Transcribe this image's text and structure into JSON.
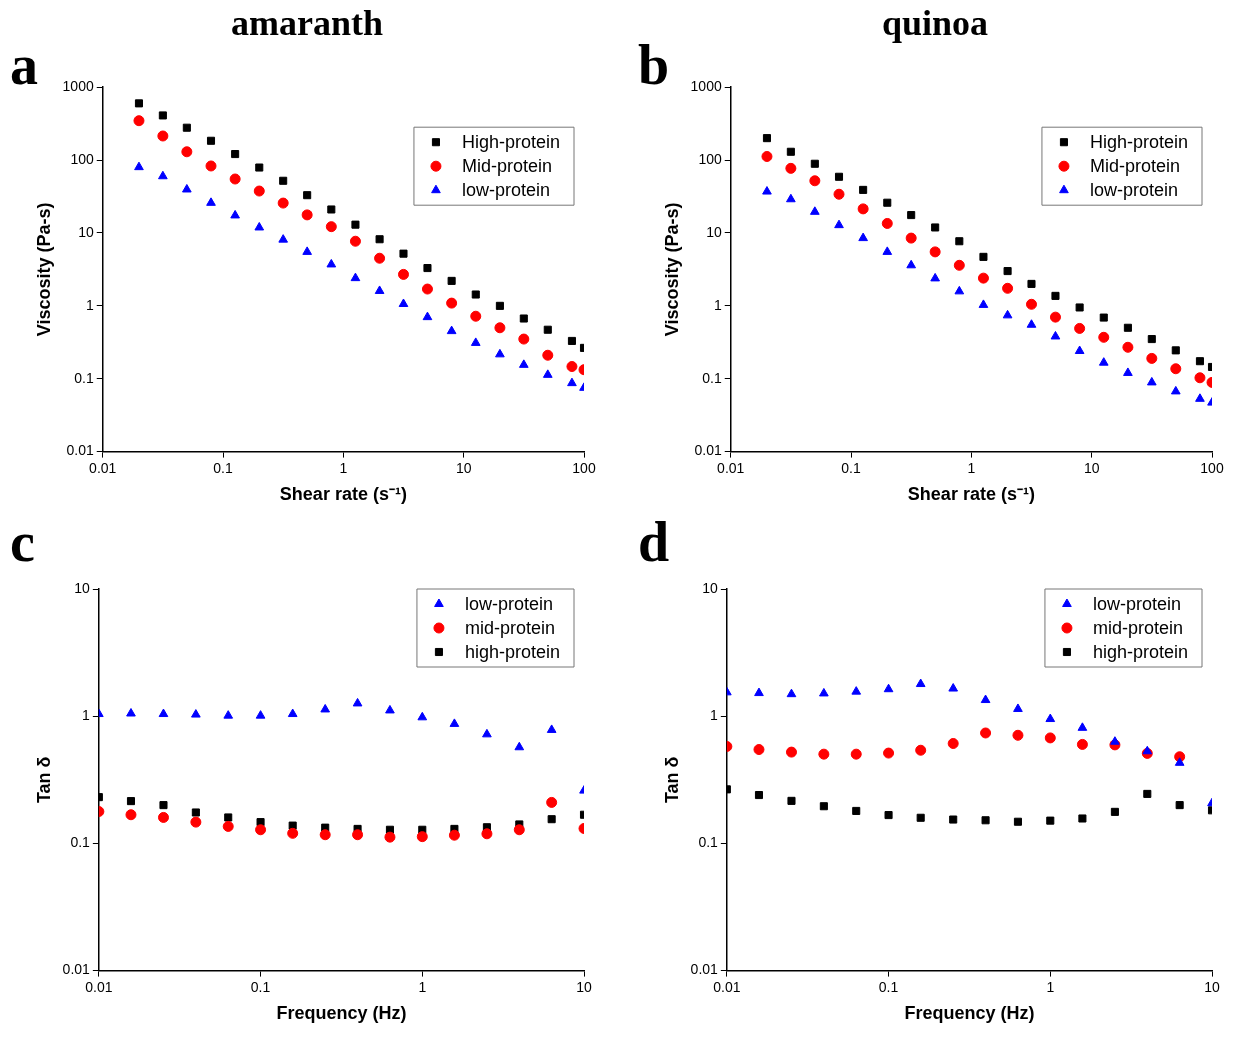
{
  "chart_data": [
    {
      "type": "scatter",
      "title": "amaranth",
      "annotations": [
        "a"
      ],
      "xlabel": "Shear rate (s⁻¹)",
      "ylabel": "Viscosity (Pa-s)",
      "log": "xy",
      "legend": "top right",
      "x": [
        0.02,
        0.0316,
        0.05,
        0.0794,
        0.126,
        0.2,
        0.316,
        0.5,
        0.794,
        1.26,
        2,
        3.16,
        5,
        7.94,
        12.6,
        20,
        31.6,
        50,
        79.4,
        100
      ],
      "xlim": [
        0.01,
        100
      ],
      "xticks": [
        0.01,
        0.1,
        1,
        10,
        100
      ],
      "ylim": [
        0.01,
        1000
      ],
      "yticks": [
        0.01,
        0.1,
        1,
        10,
        100,
        1000
      ],
      "series": [
        {
          "name": "High-protein",
          "color": "#000000",
          "marker": "square",
          "values": [
            600,
            410,
            278,
            184,
            121,
            79,
            52,
            33,
            21,
            13,
            8.2,
            5.2,
            3.3,
            2.2,
            1.43,
            1.0,
            0.67,
            0.47,
            0.33,
            0.265
          ]
        },
        {
          "name": "Mid-protein",
          "color": "#ff0000",
          "marker": "circle",
          "values": [
            347,
            214,
            130,
            83,
            55,
            37.6,
            25.7,
            17.7,
            12.2,
            7.7,
            4.5,
            2.7,
            1.7,
            1.09,
            0.72,
            0.5,
            0.35,
            0.21,
            0.147,
            0.133
          ]
        },
        {
          "name": "low-protein",
          "color": "#0000ff",
          "marker": "triangle",
          "values": [
            80,
            60,
            39.5,
            25.9,
            17.4,
            11.9,
            8.1,
            5.5,
            3.7,
            2.4,
            1.6,
            1.06,
            0.7,
            0.45,
            0.31,
            0.216,
            0.155,
            0.113,
            0.087,
            0.075
          ]
        }
      ]
    },
    {
      "type": "scatter",
      "title": "quinoa",
      "annotations": [
        "b"
      ],
      "xlabel": "Shear rate (s⁻¹)",
      "ylabel": "Viscosity (Pa-s)",
      "log": "xy",
      "legend": "top right",
      "x": [
        0.02,
        0.0316,
        0.05,
        0.0794,
        0.126,
        0.2,
        0.316,
        0.5,
        0.794,
        1.26,
        2,
        3.16,
        5,
        7.94,
        12.6,
        20,
        31.6,
        50,
        79.4,
        100
      ],
      "xlim": [
        0.01,
        100
      ],
      "xticks": [
        0.01,
        0.1,
        1,
        10,
        100
      ],
      "ylim": [
        0.01,
        1000
      ],
      "yticks": [
        0.01,
        0.1,
        1,
        10,
        100,
        1000
      ],
      "series": [
        {
          "name": "High-protein",
          "color": "#000000",
          "marker": "square",
          "values": [
            200,
            130,
            89,
            59,
            39,
            26,
            17.6,
            11.9,
            7.7,
            4.7,
            3.0,
            2.0,
            1.37,
            0.95,
            0.69,
            0.5,
            0.35,
            0.245,
            0.174,
            0.145
          ]
        },
        {
          "name": "Mid-protein",
          "color": "#ff0000",
          "marker": "circle",
          "values": [
            112,
            77,
            52,
            34,
            21.4,
            13.5,
            8.5,
            5.5,
            3.6,
            2.4,
            1.74,
            1.05,
            0.7,
            0.49,
            0.37,
            0.27,
            0.19,
            0.137,
            0.103,
            0.089
          ]
        },
        {
          "name": "low-protein",
          "color": "#0000ff",
          "marker": "triangle",
          "values": [
            37,
            29,
            19.5,
            12.8,
            8.5,
            5.5,
            3.6,
            2.38,
            1.58,
            1.03,
            0.74,
            0.55,
            0.38,
            0.24,
            0.166,
            0.12,
            0.089,
            0.067,
            0.053,
            0.047
          ]
        }
      ]
    },
    {
      "type": "scatter",
      "annotations": [
        "c"
      ],
      "xlabel": "Frequency (Hz)",
      "ylabel": "Tan δ",
      "log": "xy",
      "legend": "top right",
      "x": [
        0.01,
        0.0158,
        0.0251,
        0.0398,
        0.0631,
        0.1,
        0.158,
        0.251,
        0.398,
        0.631,
        1,
        1.58,
        2.51,
        3.98,
        6.31,
        10
      ],
      "xlim": [
        0.01,
        10
      ],
      "xticks": [
        0.01,
        0.1,
        1,
        10
      ],
      "ylim": [
        0.01,
        10
      ],
      "yticks": [
        0.01,
        0.1,
        1,
        10
      ],
      "series": [
        {
          "name": "low-protein",
          "color": "#0000ff",
          "marker": "triangle",
          "values": [
            1.04,
            1.05,
            1.04,
            1.03,
            1.01,
            1.01,
            1.04,
            1.13,
            1.26,
            1.11,
            0.98,
            0.87,
            0.72,
            0.57,
            0.78,
            0.26
          ]
        },
        {
          "name": "mid-protein",
          "color": "#ff0000",
          "marker": "circle",
          "values": [
            0.178,
            0.168,
            0.16,
            0.147,
            0.136,
            0.128,
            0.12,
            0.117,
            0.117,
            0.112,
            0.113,
            0.116,
            0.119,
            0.128,
            0.21,
            0.131
          ]
        },
        {
          "name": "high-protein",
          "color": "#000000",
          "marker": "square",
          "values": [
            0.231,
            0.215,
            0.2,
            0.175,
            0.16,
            0.147,
            0.138,
            0.133,
            0.13,
            0.128,
            0.128,
            0.13,
            0.134,
            0.141,
            0.155,
            0.168
          ]
        }
      ]
    },
    {
      "type": "scatter",
      "annotations": [
        "d"
      ],
      "xlabel": "Frequency (Hz)",
      "ylabel": "Tan δ",
      "log": "xy",
      "legend": "top right",
      "x": [
        0.01,
        0.0158,
        0.0251,
        0.0398,
        0.0631,
        0.1,
        0.158,
        0.251,
        0.398,
        0.631,
        1,
        1.58,
        2.51,
        3.98,
        6.31,
        10
      ],
      "xlim": [
        0.01,
        10
      ],
      "xticks": [
        0.01,
        0.1,
        1,
        10
      ],
      "ylim": [
        0.01,
        10
      ],
      "yticks": [
        0.01,
        0.1,
        1,
        10
      ],
      "series": [
        {
          "name": "low-protein",
          "color": "#0000ff",
          "marker": "triangle",
          "values": [
            1.54,
            1.52,
            1.49,
            1.51,
            1.56,
            1.63,
            1.79,
            1.65,
            1.34,
            1.14,
            0.95,
            0.81,
            0.63,
            0.53,
            0.43,
            0.207
          ]
        },
        {
          "name": "mid-protein",
          "color": "#ff0000",
          "marker": "circle",
          "values": [
            0.578,
            0.547,
            0.522,
            0.503,
            0.503,
            0.513,
            0.54,
            0.61,
            0.738,
            0.708,
            0.675,
            0.6,
            0.595,
            0.51,
            0.48,
            null
          ]
        },
        {
          "name": "high-protein",
          "color": "#000000",
          "marker": "square",
          "values": [
            0.266,
            0.24,
            0.216,
            0.196,
            0.18,
            0.167,
            0.159,
            0.154,
            0.152,
            0.148,
            0.151,
            0.157,
            0.177,
            0.245,
            0.2,
            0.182
          ]
        }
      ]
    }
  ]
}
